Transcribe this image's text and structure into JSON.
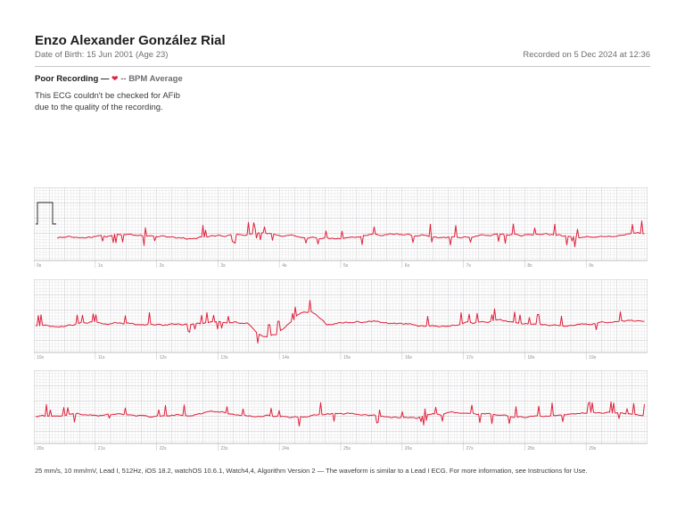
{
  "patient": {
    "name": "Enzo Alexander González Rial",
    "dob": "Date of Birth: 15 Jun 2001 (Age 23)"
  },
  "recorded": "Recorded on 5 Dec 2024 at 12:36",
  "status": {
    "classification": "Poor Recording —",
    "heart_icon": "heart-icon",
    "bpm": "-- BPM Average"
  },
  "description": "This ECG couldn't be checked for AFib\ndue to the quality of the recording.",
  "strips": [
    {
      "time_labels": [
        "0s",
        "1s",
        "2s",
        "3s",
        "4s",
        "5s",
        "6s",
        "7s",
        "8s",
        "9s"
      ]
    },
    {
      "time_labels": [
        "10s",
        "11s",
        "12s",
        "13s",
        "14s",
        "15s",
        "16s",
        "17s",
        "18s",
        "19s"
      ]
    },
    {
      "time_labels": [
        "20s",
        "21s",
        "22s",
        "23s",
        "24s",
        "25s",
        "26s",
        "27s",
        "28s",
        "29s"
      ]
    }
  ],
  "footer": "25 mm/s, 10 mm/mV, Lead I, 512Hz, iOS 18.2, watchOS 10.6.1, Watch4,4, Algorithm Version 2 — The waveform is similar to a Lead I ECG. For more information, see Instructions for Use.",
  "colors": {
    "trace": "#e0203a",
    "grid_minor": "#e6e6e8",
    "grid_major": "#c4c4c8"
  }
}
